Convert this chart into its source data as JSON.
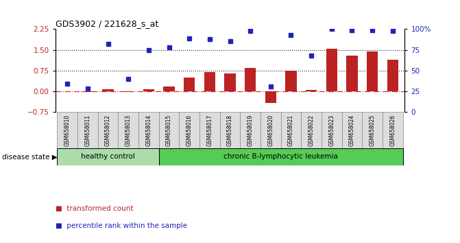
{
  "title": "GDS3902 / 221628_s_at",
  "samples": [
    "GSM658010",
    "GSM658011",
    "GSM658012",
    "GSM658013",
    "GSM658014",
    "GSM658015",
    "GSM658016",
    "GSM658017",
    "GSM658018",
    "GSM658019",
    "GSM658020",
    "GSM658021",
    "GSM658022",
    "GSM658023",
    "GSM658024",
    "GSM658025",
    "GSM658026"
  ],
  "bar_values": [
    0.0,
    -0.02,
    0.07,
    -0.02,
    0.08,
    0.18,
    0.5,
    0.7,
    0.65,
    0.85,
    -0.42,
    0.75,
    0.05,
    1.55,
    1.3,
    1.45,
    1.15
  ],
  "dot_values": [
    0.28,
    0.1,
    1.72,
    0.45,
    1.48,
    1.58,
    1.92,
    1.88,
    1.82,
    2.18,
    0.18,
    2.05,
    1.3,
    2.25,
    2.22,
    2.22,
    2.18
  ],
  "bar_color": "#bb2222",
  "dot_color": "#2222bb",
  "hline_zero_color": "#cc3333",
  "hline1": 0.75,
  "hline2": 1.5,
  "hline_color": "#222222",
  "ylim": [
    -0.75,
    2.25
  ],
  "yticks_left": [
    -0.75,
    0.0,
    0.75,
    1.5,
    2.25
  ],
  "right_tick_positions": [
    -0.75,
    0.0,
    0.75,
    1.5,
    2.25
  ],
  "right_tick_labels": [
    "0",
    "25",
    "50",
    "75",
    "100%"
  ],
  "ylabel_left_color": "#bb2222",
  "ylabel_right_color": "#2222bb",
  "disease_state_label": "disease state",
  "group1_label": "healthy control",
  "group2_label": "chronic B-lymphocytic leukemia",
  "group1_indices": [
    0,
    1,
    2,
    3,
    4
  ],
  "group2_indices": [
    5,
    6,
    7,
    8,
    9,
    10,
    11,
    12,
    13,
    14,
    15,
    16
  ],
  "group1_color": "#aaddaa",
  "group2_color": "#55cc55",
  "legend_bar_label": "transformed count",
  "legend_dot_label": "percentile rank within the sample",
  "tick_area_color": "#dddddd",
  "tick_area_border": "#888888",
  "bg_color": "#ffffff"
}
